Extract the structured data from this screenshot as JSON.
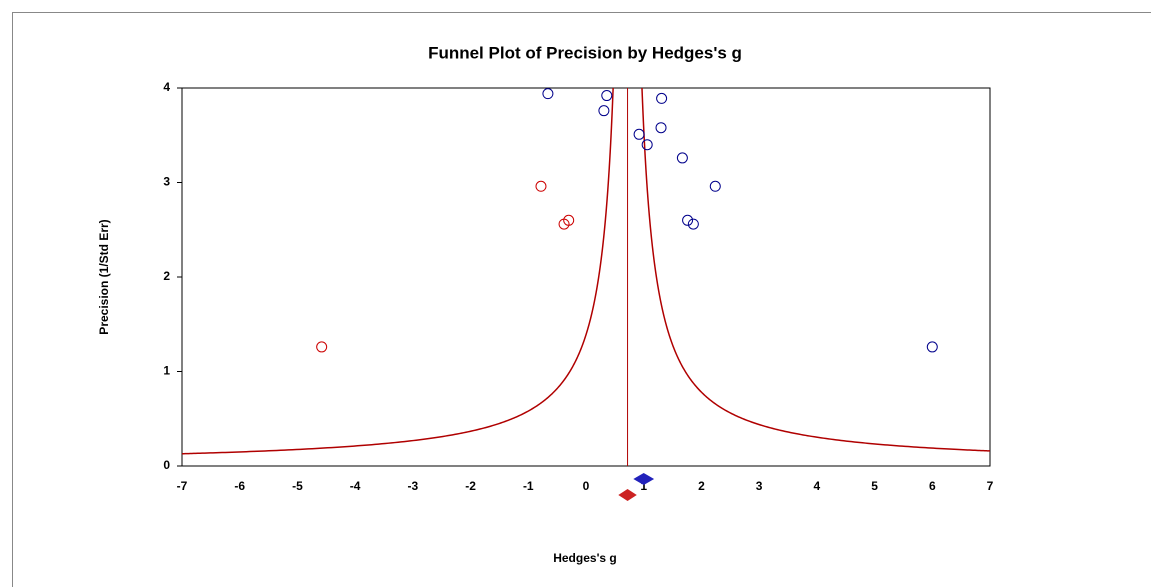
{
  "chart_data": {
    "type": "funnel",
    "title": "Funnel Plot of Precision by Hedges's g",
    "x_label": "Hedges's g",
    "y_label": "Precision (1/Std Err)",
    "xlim": [
      -7,
      7
    ],
    "xticks": [
      -7,
      -6,
      -5,
      -4,
      -3,
      -2,
      -1,
      0,
      1,
      2,
      3,
      4,
      5,
      6,
      7
    ],
    "ylim": [
      0,
      4
    ],
    "yticks": [
      0,
      1,
      2,
      3,
      4
    ],
    "funnel_center": 0.72,
    "funnel_z": 1,
    "funnel_color": "#b00000",
    "series": [
      {
        "color": "#00008b",
        "x": [
          -0.66,
          0.36,
          0.31,
          1.31,
          0.92,
          1.3,
          1.06,
          1.67,
          2.24,
          1.76,
          1.86,
          6.0
        ],
        "values": [
          3.94,
          3.92,
          3.76,
          3.89,
          3.51,
          3.58,
          3.4,
          3.26,
          2.96,
          2.6,
          2.56,
          1.26
        ]
      },
      {
        "color": "#cc0000",
        "x": [
          -0.78,
          -0.38,
          -0.3,
          -4.58
        ],
        "values": [
          2.96,
          2.56,
          2.6,
          1.26
        ]
      }
    ],
    "summary": [
      {
        "color": "#2222bb",
        "value": 1.0,
        "lower": 0.82,
        "upper": 1.18
      },
      {
        "color": "#cc2222",
        "value": 0.72,
        "lower": 0.56,
        "upper": 0.88
      }
    ]
  }
}
